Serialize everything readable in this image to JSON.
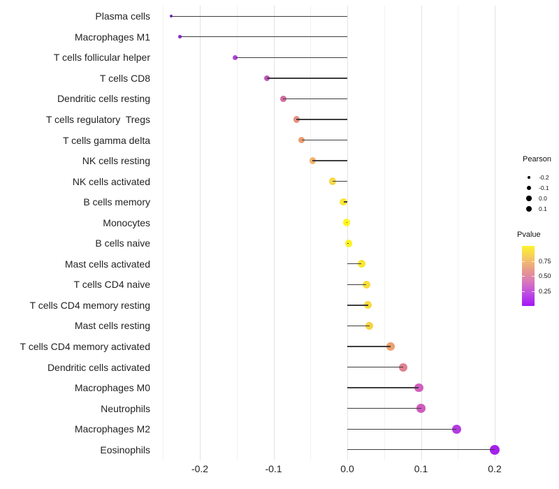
{
  "chart_data": {
    "type": "lollipop",
    "title": "",
    "xlabel": "",
    "ylabel": "",
    "grid": "vertical-only",
    "x_axis": {
      "range": [
        -0.262,
        0.222
      ],
      "major_ticks": [
        {
          "value": -0.2,
          "label": "-0.2"
        },
        {
          "value": -0.1,
          "label": "-0.1"
        },
        {
          "value": 0.0,
          "label": "0.0"
        },
        {
          "value": 0.1,
          "label": "0.1"
        },
        {
          "value": 0.2,
          "label": "0.2"
        }
      ],
      "minor_ticks": [
        -0.25,
        -0.15,
        -0.05,
        0.05,
        0.15
      ]
    },
    "points": [
      {
        "label": "Plasma cells",
        "pearson": -0.239,
        "color": "#7d20c8"
      },
      {
        "label": "Macrophages M1",
        "pearson": -0.227,
        "color": "#8c2bd2"
      },
      {
        "label": "T cells follicular helper",
        "pearson": -0.152,
        "color": "#b044da"
      },
      {
        "label": "T cells CD8",
        "pearson": -0.109,
        "color": "#c156c0"
      },
      {
        "label": "Dendritic cells resting",
        "pearson": -0.087,
        "color": "#d56ca0"
      },
      {
        "label": "T cells regulatory  Tregs",
        "pearson": -0.069,
        "color": "#e68f82"
      },
      {
        "label": "T cells gamma delta",
        "pearson": -0.062,
        "color": "#eb9c70"
      },
      {
        "label": "NK cells resting",
        "pearson": -0.047,
        "color": "#f2b36b"
      },
      {
        "label": "NK cells activated",
        "pearson": -0.02,
        "color": "#f6d94a"
      },
      {
        "label": "B cells memory",
        "pearson": -0.005,
        "color": "#fae734"
      },
      {
        "label": "Monocytes",
        "pearson": -0.001,
        "color": "#fdf61f"
      },
      {
        "label": "B cells naive",
        "pearson": 0.002,
        "color": "#fcf227"
      },
      {
        "label": "Mast cells activated",
        "pearson": 0.019,
        "color": "#fae530"
      },
      {
        "label": "T cells CD4 naive",
        "pearson": 0.026,
        "color": "#f9de39"
      },
      {
        "label": "T cells CD4 memory resting",
        "pearson": 0.028,
        "color": "#f8db3b"
      },
      {
        "label": "Mast cells resting",
        "pearson": 0.03,
        "color": "#f6d342"
      },
      {
        "label": "T cells CD4 memory activated",
        "pearson": 0.059,
        "color": "#eca06e"
      },
      {
        "label": "Dendritic cells activated",
        "pearson": 0.076,
        "color": "#de8190"
      },
      {
        "label": "Macrophages M0",
        "pearson": 0.097,
        "color": "#d160bc"
      },
      {
        "label": "Neutrophils",
        "pearson": 0.1,
        "color": "#ce5cbc"
      },
      {
        "label": "Macrophages M2",
        "pearson": 0.148,
        "color": "#b23be0"
      },
      {
        "label": "Eosinophils",
        "pearson": 0.2,
        "color": "#a621ee"
      }
    ],
    "legend": {
      "size": {
        "title": "Pearson",
        "entries": [
          {
            "label": "-0.2",
            "diameter": 4.5
          },
          {
            "label": "-0.1",
            "diameter": 6.5
          },
          {
            "label": "0.0",
            "diameter": 7.5
          },
          {
            "label": "0.1",
            "diameter": 8.5
          }
        ]
      },
      "color": {
        "title": "Pvalue",
        "ticks": [
          {
            "label": "0.75",
            "p": 0.75
          },
          {
            "label": "0.50",
            "p": 0.5
          },
          {
            "label": "0.25",
            "p": 0.25
          }
        ],
        "gradient_stops_bottom_to_top": [
          "#a316f5",
          "#bc4ae4",
          "#d877bc",
          "#e89a8c",
          "#f5c963",
          "#fcf32b"
        ]
      }
    },
    "colors": {
      "stem": "#3d3d3d",
      "grid_major": "#e3e3e3",
      "grid_minor": "#f2f2f2",
      "axis_text": "#232323",
      "legend_dot": "#000000"
    }
  }
}
